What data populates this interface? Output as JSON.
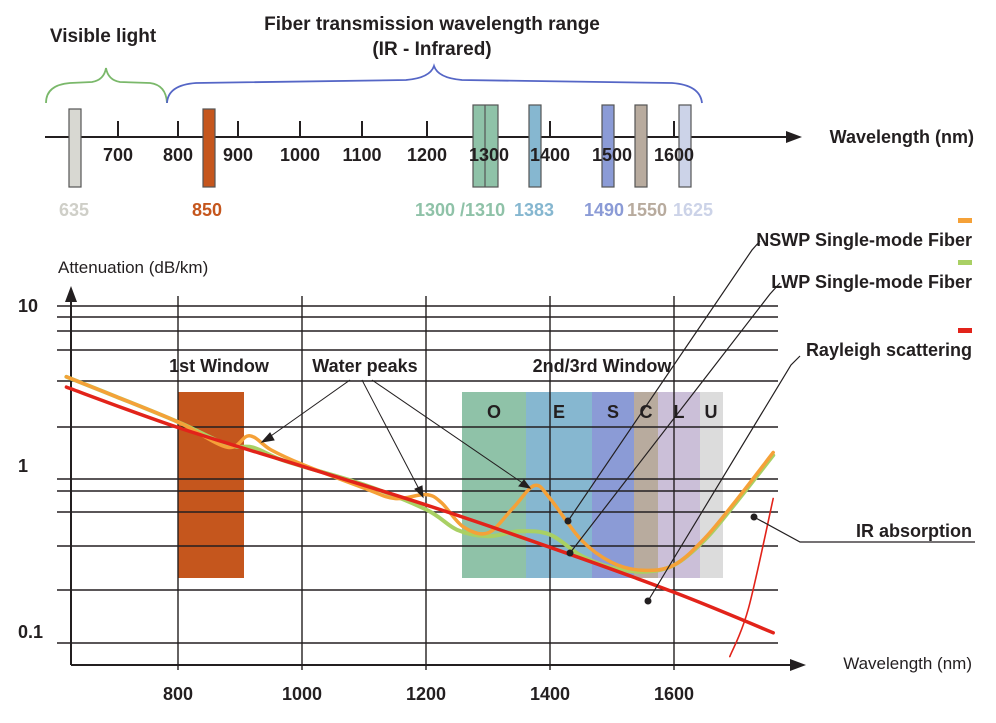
{
  "spectrum": {
    "visible_label": "Visible light",
    "fiber_label_line1": "Fiber transmission wavelength range",
    "fiber_label_line2": "(IR - Infrared)",
    "axis_label": "Wavelength (nm)",
    "ticks": [
      "700",
      "800",
      "900",
      "1000",
      "1100",
      "1200",
      "1300",
      "1400",
      "1500",
      "1600"
    ],
    "markers": [
      {
        "label": "635",
        "color": "#d8d8d2"
      },
      {
        "label": "850",
        "color": "#c5561d"
      },
      {
        "label": "1300 /1310",
        "color": "#8fc2a8"
      },
      {
        "label": "1383",
        "color": "#86b7d0"
      },
      {
        "label": "1490",
        "color": "#8b9bd6"
      },
      {
        "label": "1550",
        "color": "#b8ab9e"
      },
      {
        "label": "1625",
        "color": "#ccd3e8"
      }
    ]
  },
  "chart": {
    "ylabel": "Attenuation (dB/km)",
    "xlabel": "Wavelength (nm)",
    "yticks": [
      "10",
      "1",
      "0.1"
    ],
    "xticks": [
      "800",
      "1000",
      "1200",
      "1400",
      "1600"
    ],
    "window1_label": "1st Window",
    "window23_label": "2nd/3rd Window",
    "water_peaks_label": "Water peaks",
    "bands": [
      {
        "label": "O",
        "color": "#8fc2a8"
      },
      {
        "label": "E",
        "color": "#86b7d0"
      },
      {
        "label": "S",
        "color": "#8b9bd6"
      },
      {
        "label": "C",
        "color": "#b8ab9e"
      },
      {
        "label": "L",
        "color": "#cbbfd8"
      },
      {
        "label": "U",
        "color": "#dcdcdc"
      }
    ],
    "legend": [
      {
        "label": "NSWP Single-mode  Fiber",
        "color": "#f5a138"
      },
      {
        "label": "LWP Single-mode Fiber",
        "color": "#a9d064"
      },
      {
        "label": "Rayleigh scattering",
        "color": "#e2231a"
      }
    ],
    "ir_label": "IR absorption",
    "window1_color": "#c5561d"
  },
  "chart_data": {
    "type": "line",
    "title": "",
    "xlabel": "Wavelength (nm)",
    "ylabel": "Attenuation (dB/km)",
    "xlim": [
      620,
      1780
    ],
    "ylim": [
      0.08,
      12
    ],
    "yscale": "log",
    "series": [
      {
        "name": "NSWP Single-mode  Fiber",
        "x": [
          620,
          700,
          800,
          880,
          915,
          950,
          1000,
          1100,
          1150,
          1200,
          1225,
          1260,
          1300,
          1340,
          1375,
          1400,
          1450,
          1500,
          1550,
          1600,
          1650,
          1700,
          1760
        ],
        "y": [
          3.8,
          2.9,
          2.05,
          1.45,
          1.7,
          1.4,
          1.15,
          0.83,
          0.72,
          0.76,
          0.68,
          0.49,
          0.45,
          0.63,
          0.86,
          0.72,
          0.41,
          0.3,
          0.27,
          0.29,
          0.42,
          0.7,
          1.35
        ]
      },
      {
        "name": "LWP Single-mode Fiber",
        "x": [
          620,
          700,
          800,
          880,
          920,
          960,
          1000,
          1100,
          1200,
          1250,
          1300,
          1350,
          1400,
          1450,
          1500,
          1550,
          1600,
          1650,
          1700,
          1760
        ],
        "y": [
          3.8,
          2.9,
          2.05,
          1.5,
          1.45,
          1.25,
          1.12,
          0.87,
          0.62,
          0.47,
          0.43,
          0.46,
          0.44,
          0.33,
          0.28,
          0.265,
          0.29,
          0.41,
          0.68,
          1.3
        ]
      },
      {
        "name": "Rayleigh scattering",
        "x": [
          620,
          800,
          1000,
          1200,
          1400,
          1600,
          1760
        ],
        "y": [
          3.3,
          1.9,
          1.12,
          0.66,
          0.37,
          0.2,
          0.115
        ]
      },
      {
        "name": "",
        "x": [
          1690,
          1720,
          1760
        ],
        "y": [
          0.083,
          0.16,
          0.72
        ]
      }
    ],
    "windows": [
      {
        "name": "1st Window",
        "x": [
          800,
          900
        ]
      },
      {
        "name": "O",
        "x": [
          1260,
          1360
        ]
      },
      {
        "name": "E",
        "x": [
          1360,
          1460
        ]
      },
      {
        "name": "S",
        "x": [
          1460,
          1530
        ]
      },
      {
        "name": "C",
        "x": [
          1530,
          1565
        ]
      },
      {
        "name": "L",
        "x": [
          1565,
          1625
        ]
      },
      {
        "name": "U",
        "x": [
          1625,
          1675
        ]
      }
    ],
    "annotations": [
      "1st Window",
      "Water peaks",
      "2nd/3rd Window",
      "IR absorption"
    ]
  }
}
